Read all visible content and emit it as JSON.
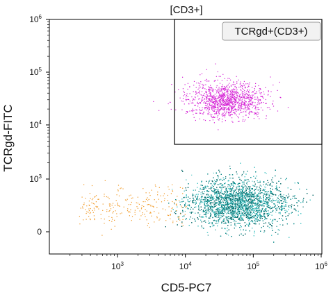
{
  "chart_data": {
    "type": "scatter",
    "title": "[CD3+]",
    "xlabel": "CD5-PC7",
    "ylabel": "TCRgd-FITC",
    "x_scale": "log",
    "y_scale": "biexponential",
    "x_ticks": [
      {
        "value": 1000,
        "base": "10",
        "exp": "3"
      },
      {
        "value": 10000,
        "base": "10",
        "exp": "4"
      },
      {
        "value": 100000,
        "base": "10",
        "exp": "5"
      },
      {
        "value": 1000000,
        "base": "10",
        "exp": "6"
      }
    ],
    "y_ticks": [
      {
        "value": 0,
        "text": "0"
      },
      {
        "value": 1000,
        "base": "10",
        "exp": "3"
      },
      {
        "value": 10000,
        "base": "10",
        "exp": "4"
      },
      {
        "value": 100000,
        "base": "10",
        "exp": "5"
      },
      {
        "value": 1000000,
        "base": "10",
        "exp": "6"
      }
    ],
    "gate": {
      "label": "TCRgd+(CD3+)",
      "x_range": [
        7000,
        1000000
      ],
      "y_range": [
        5000,
        1000000
      ]
    },
    "populations": [
      {
        "color": "#d41ed4",
        "center_x": 40000,
        "center_y": 30000,
        "approx_events": 1200
      },
      {
        "color": "#0d8a8a",
        "center_x": 60000,
        "center_y": 550,
        "approx_events": 7500
      },
      {
        "color": "#f0961e",
        "center_x": 2000,
        "center_y": 500,
        "approx_events": 250
      }
    ]
  }
}
